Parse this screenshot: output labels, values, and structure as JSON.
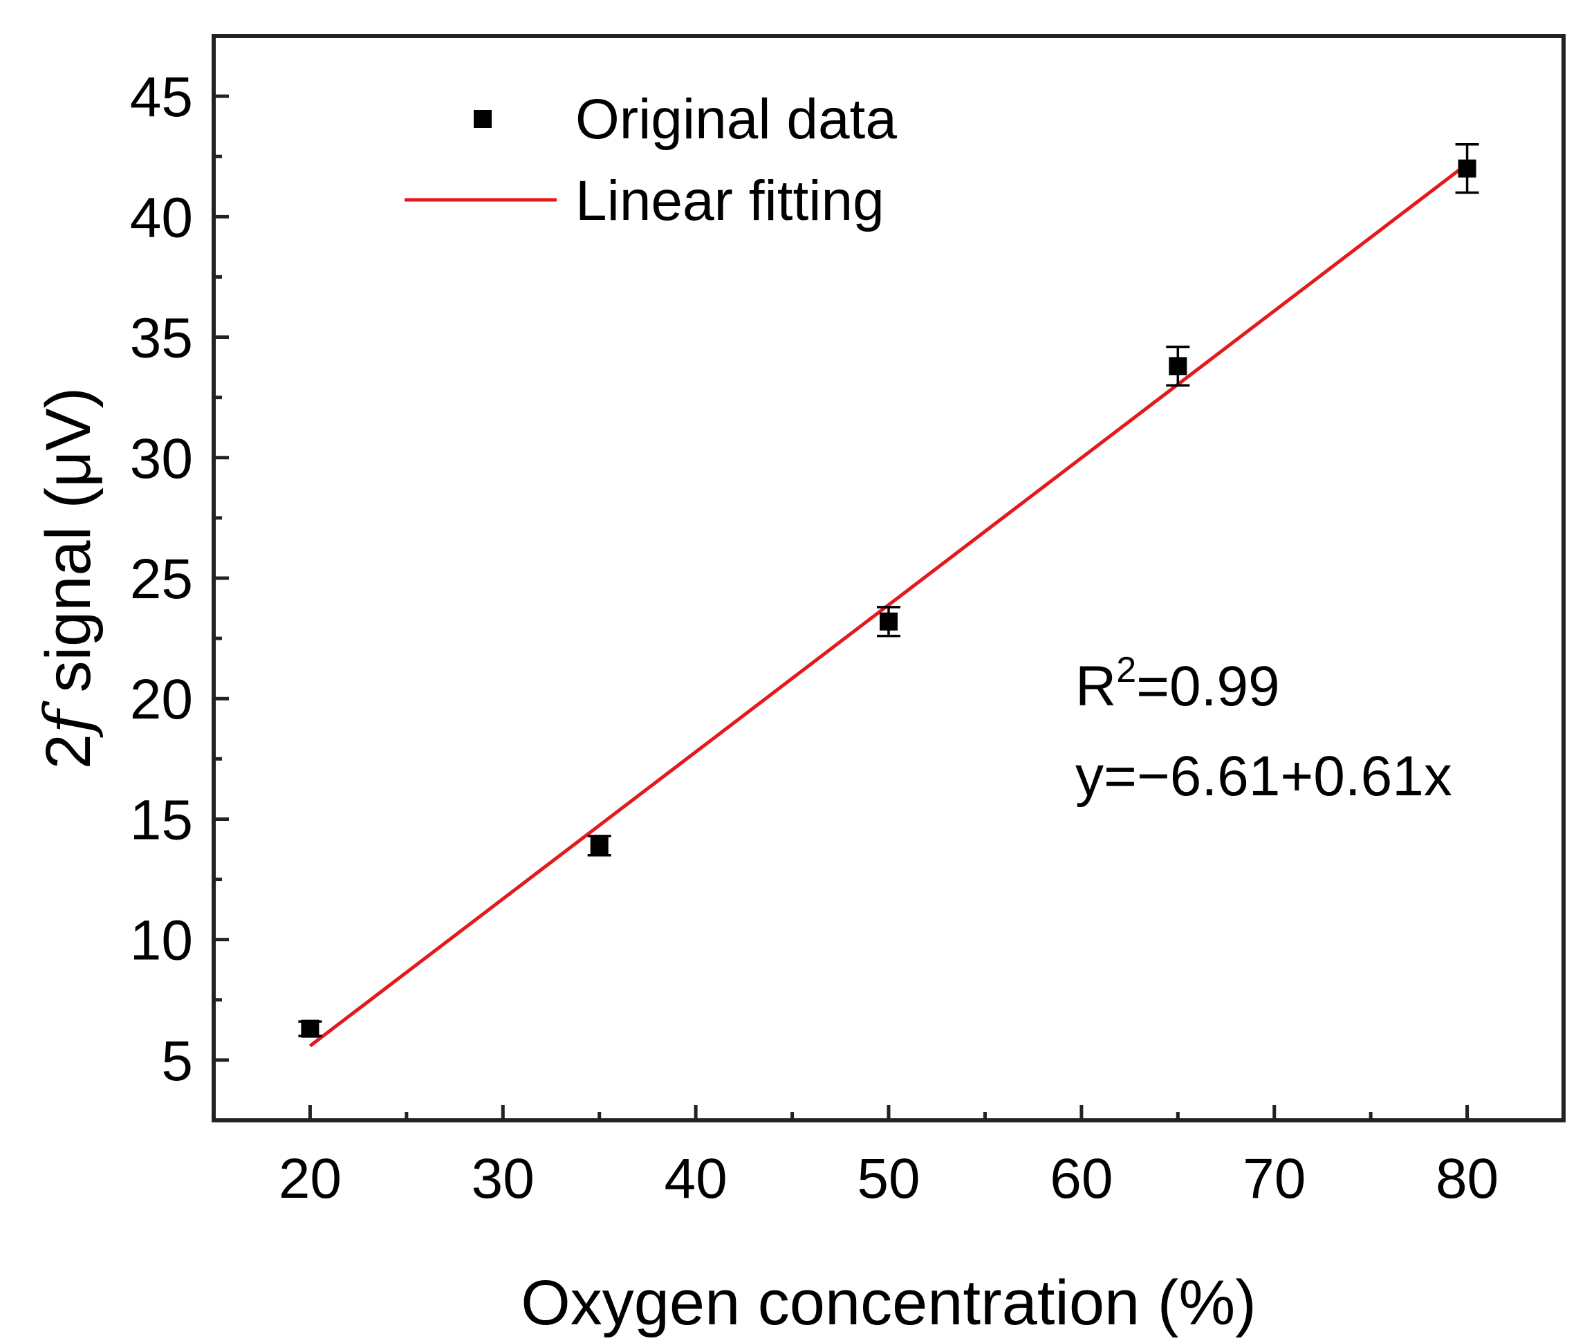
{
  "chart_data": {
    "type": "scatter",
    "xlabel": "Oxygen concentration (%)",
    "ylabel_prefix": "2",
    "ylabel_italic": "f",
    "ylabel_suffix": " signal (μV)",
    "xlim": [
      15,
      85
    ],
    "ylim": [
      2.5,
      47.5
    ],
    "xticks": [
      20,
      30,
      40,
      50,
      60,
      70,
      80
    ],
    "xminor": [
      25,
      35,
      45,
      55,
      65,
      75
    ],
    "yticks": [
      5,
      10,
      15,
      20,
      25,
      30,
      35,
      40,
      45
    ],
    "xtick_labels": [
      "20",
      "30",
      "40",
      "50",
      "60",
      "70",
      "80"
    ],
    "ytick_labels": [
      "5",
      "10",
      "15",
      "20",
      "25",
      "30",
      "35",
      "40",
      "45"
    ],
    "series": [
      {
        "name": "Original data",
        "kind": "points",
        "x": [
          20,
          35,
          50,
          65,
          80
        ],
        "y": [
          6.3,
          13.9,
          23.2,
          33.8,
          42.0
        ],
        "err": [
          0.3,
          0.4,
          0.6,
          0.8,
          1.0
        ],
        "color": "#000000"
      },
      {
        "name": "Linear fitting",
        "kind": "line",
        "x": [
          20,
          80
        ],
        "y": [
          5.59,
          42.19
        ],
        "color": "#e31a1c"
      }
    ],
    "legend": {
      "position": "top-left",
      "labels": [
        "Original data",
        "Linear fitting"
      ]
    },
    "annotation": {
      "r2_base": "R",
      "r2_sup": "2",
      "r2_value": "=0.99",
      "equation": "y=−6.61+0.61x"
    }
  }
}
